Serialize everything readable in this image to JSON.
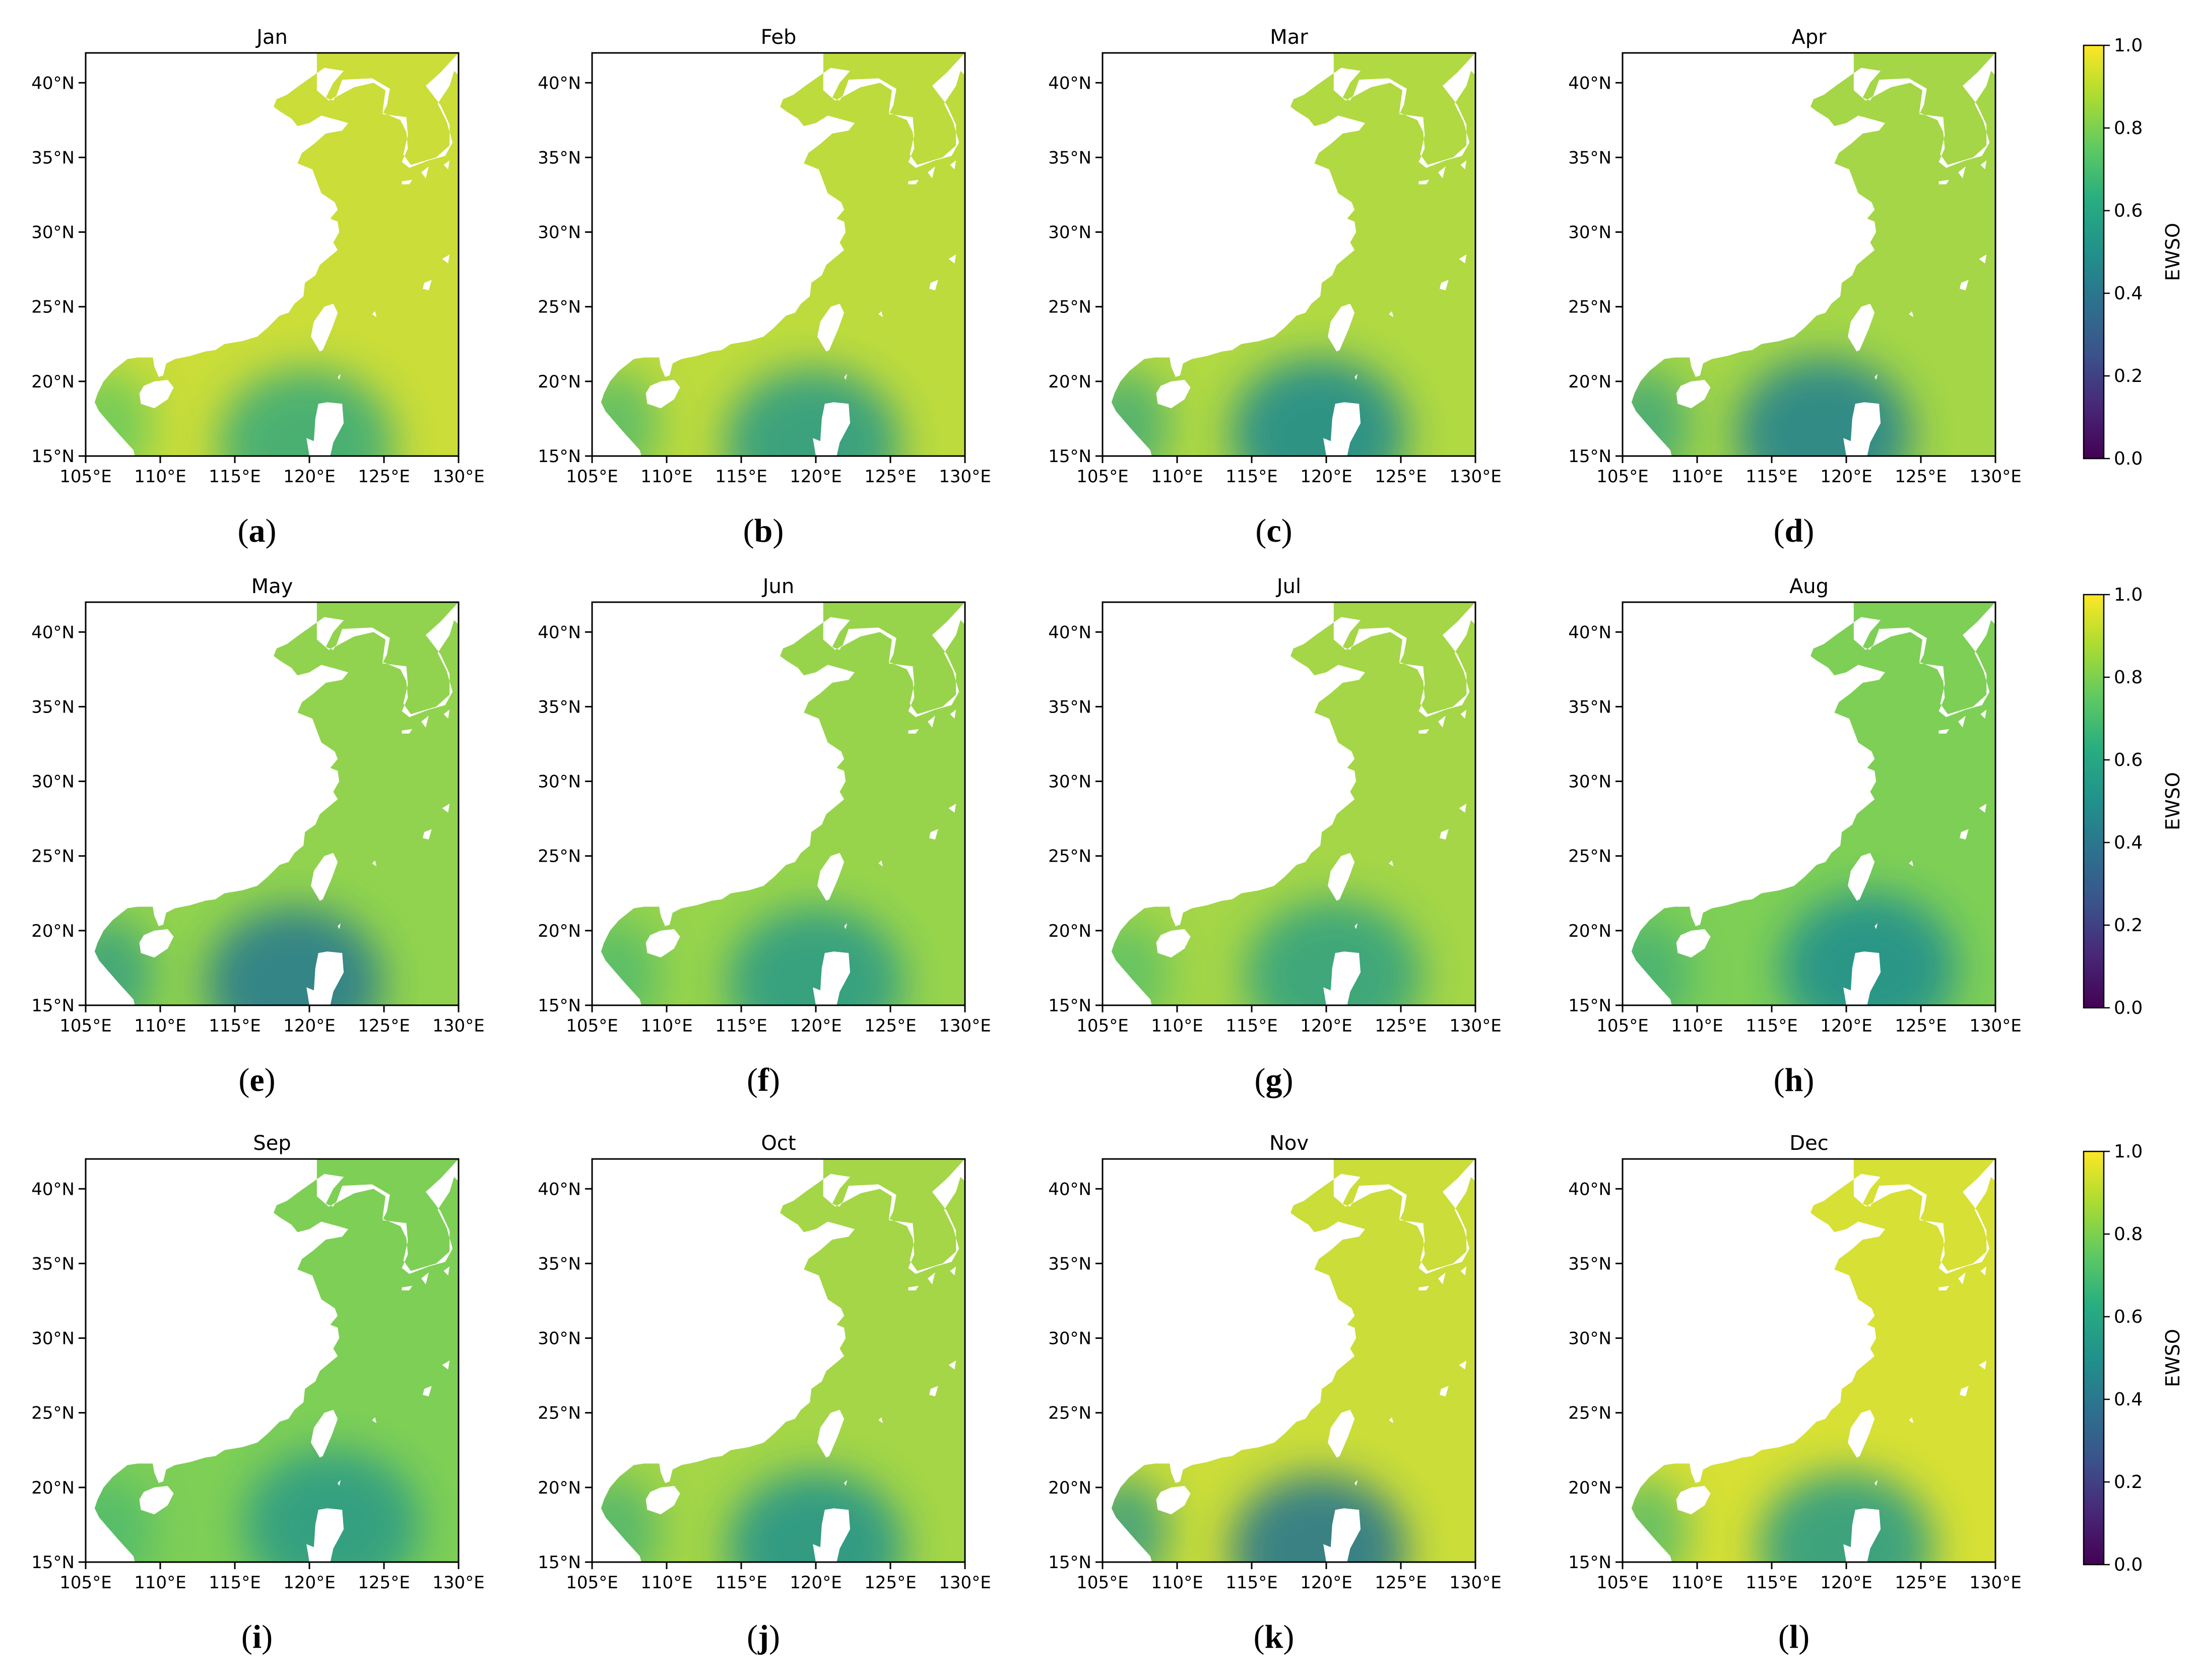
{
  "figure": {
    "colorbar_label": "EWSO",
    "colorbar_ticks": [
      "0.0",
      "0.2",
      "0.4",
      "0.6",
      "0.8",
      "1.0"
    ],
    "lon_ticks": [
      "105°E",
      "110°E",
      "115°E",
      "120°E",
      "125°E",
      "130°E"
    ],
    "lat_ticks": [
      "15°N",
      "20°N",
      "25°N",
      "30°N",
      "35°N",
      "40°N"
    ],
    "colormap": [
      "#440154",
      "#3b528b",
      "#21918c",
      "#5ec962",
      "#fde725"
    ],
    "land_color": "#ffffff"
  },
  "chart_data": [
    {
      "type": "heatmap",
      "title": "Jan",
      "label": "a",
      "xlim": [
        105,
        130
      ],
      "ylim": [
        15,
        42
      ],
      "mean_ewso": 0.92,
      "low_zone": {
        "center": [
          119.8,
          15.8
        ],
        "value": 0.62
      }
    },
    {
      "type": "heatmap",
      "title": "Feb",
      "label": "b",
      "xlim": [
        105,
        130
      ],
      "ylim": [
        15,
        42
      ],
      "mean_ewso": 0.9,
      "low_zone": {
        "center": [
          119.8,
          15.8
        ],
        "value": 0.55
      }
    },
    {
      "type": "heatmap",
      "title": "Mar",
      "label": "c",
      "xlim": [
        105,
        130
      ],
      "ylim": [
        15,
        42
      ],
      "mean_ewso": 0.88,
      "low_zone": {
        "center": [
          119.5,
          16.5
        ],
        "value": 0.48
      }
    },
    {
      "type": "heatmap",
      "title": "Apr",
      "label": "d",
      "xlim": [
        105,
        130
      ],
      "ylim": [
        15,
        42
      ],
      "mean_ewso": 0.86,
      "low_zone": {
        "center": [
          118.5,
          16.5
        ],
        "value": 0.45
      }
    },
    {
      "type": "heatmap",
      "title": "May",
      "label": "e",
      "xlim": [
        105,
        130
      ],
      "ylim": [
        15,
        42
      ],
      "mean_ewso": 0.83,
      "low_zone": {
        "center": [
          119.0,
          16.5
        ],
        "value": 0.42
      }
    },
    {
      "type": "heatmap",
      "title": "Jun",
      "label": "f",
      "xlim": [
        105,
        130
      ],
      "ylim": [
        15,
        42
      ],
      "mean_ewso": 0.84,
      "low_zone": {
        "center": [
          120.0,
          16.5
        ],
        "value": 0.55
      }
    },
    {
      "type": "heatmap",
      "title": "Jul",
      "label": "g",
      "xlim": [
        105,
        130
      ],
      "ylim": [
        15,
        42
      ],
      "mean_ewso": 0.86,
      "low_zone": {
        "center": [
          120.5,
          17.0
        ],
        "value": 0.58
      }
    },
    {
      "type": "heatmap",
      "title": "Aug",
      "label": "h",
      "xlim": [
        105,
        130
      ],
      "ylim": [
        15,
        42
      ],
      "mean_ewso": 0.8,
      "low_zone": {
        "center": [
          121.5,
          17.5
        ],
        "value": 0.5
      }
    },
    {
      "type": "heatmap",
      "title": "Sep",
      "label": "i",
      "xlim": [
        105,
        130
      ],
      "ylim": [
        15,
        42
      ],
      "mean_ewso": 0.8,
      "low_zone": {
        "center": [
          121.5,
          17.5
        ],
        "value": 0.55
      }
    },
    {
      "type": "heatmap",
      "title": "Oct",
      "label": "j",
      "xlim": [
        105,
        130
      ],
      "ylim": [
        15,
        42
      ],
      "mean_ewso": 0.86,
      "low_zone": {
        "center": [
          120.0,
          16.0
        ],
        "value": 0.52
      }
    },
    {
      "type": "heatmap",
      "title": "Nov",
      "label": "k",
      "xlim": [
        105,
        130
      ],
      "ylim": [
        15,
        42
      ],
      "mean_ewso": 0.92,
      "low_zone": {
        "center": [
          119.5,
          15.8
        ],
        "value": 0.4
      }
    },
    {
      "type": "heatmap",
      "title": "Dec",
      "label": "l",
      "xlim": [
        105,
        130
      ],
      "ylim": [
        15,
        42
      ],
      "mean_ewso": 0.94,
      "low_zone": {
        "center": [
          120.0,
          16.0
        ],
        "value": 0.55
      }
    }
  ]
}
